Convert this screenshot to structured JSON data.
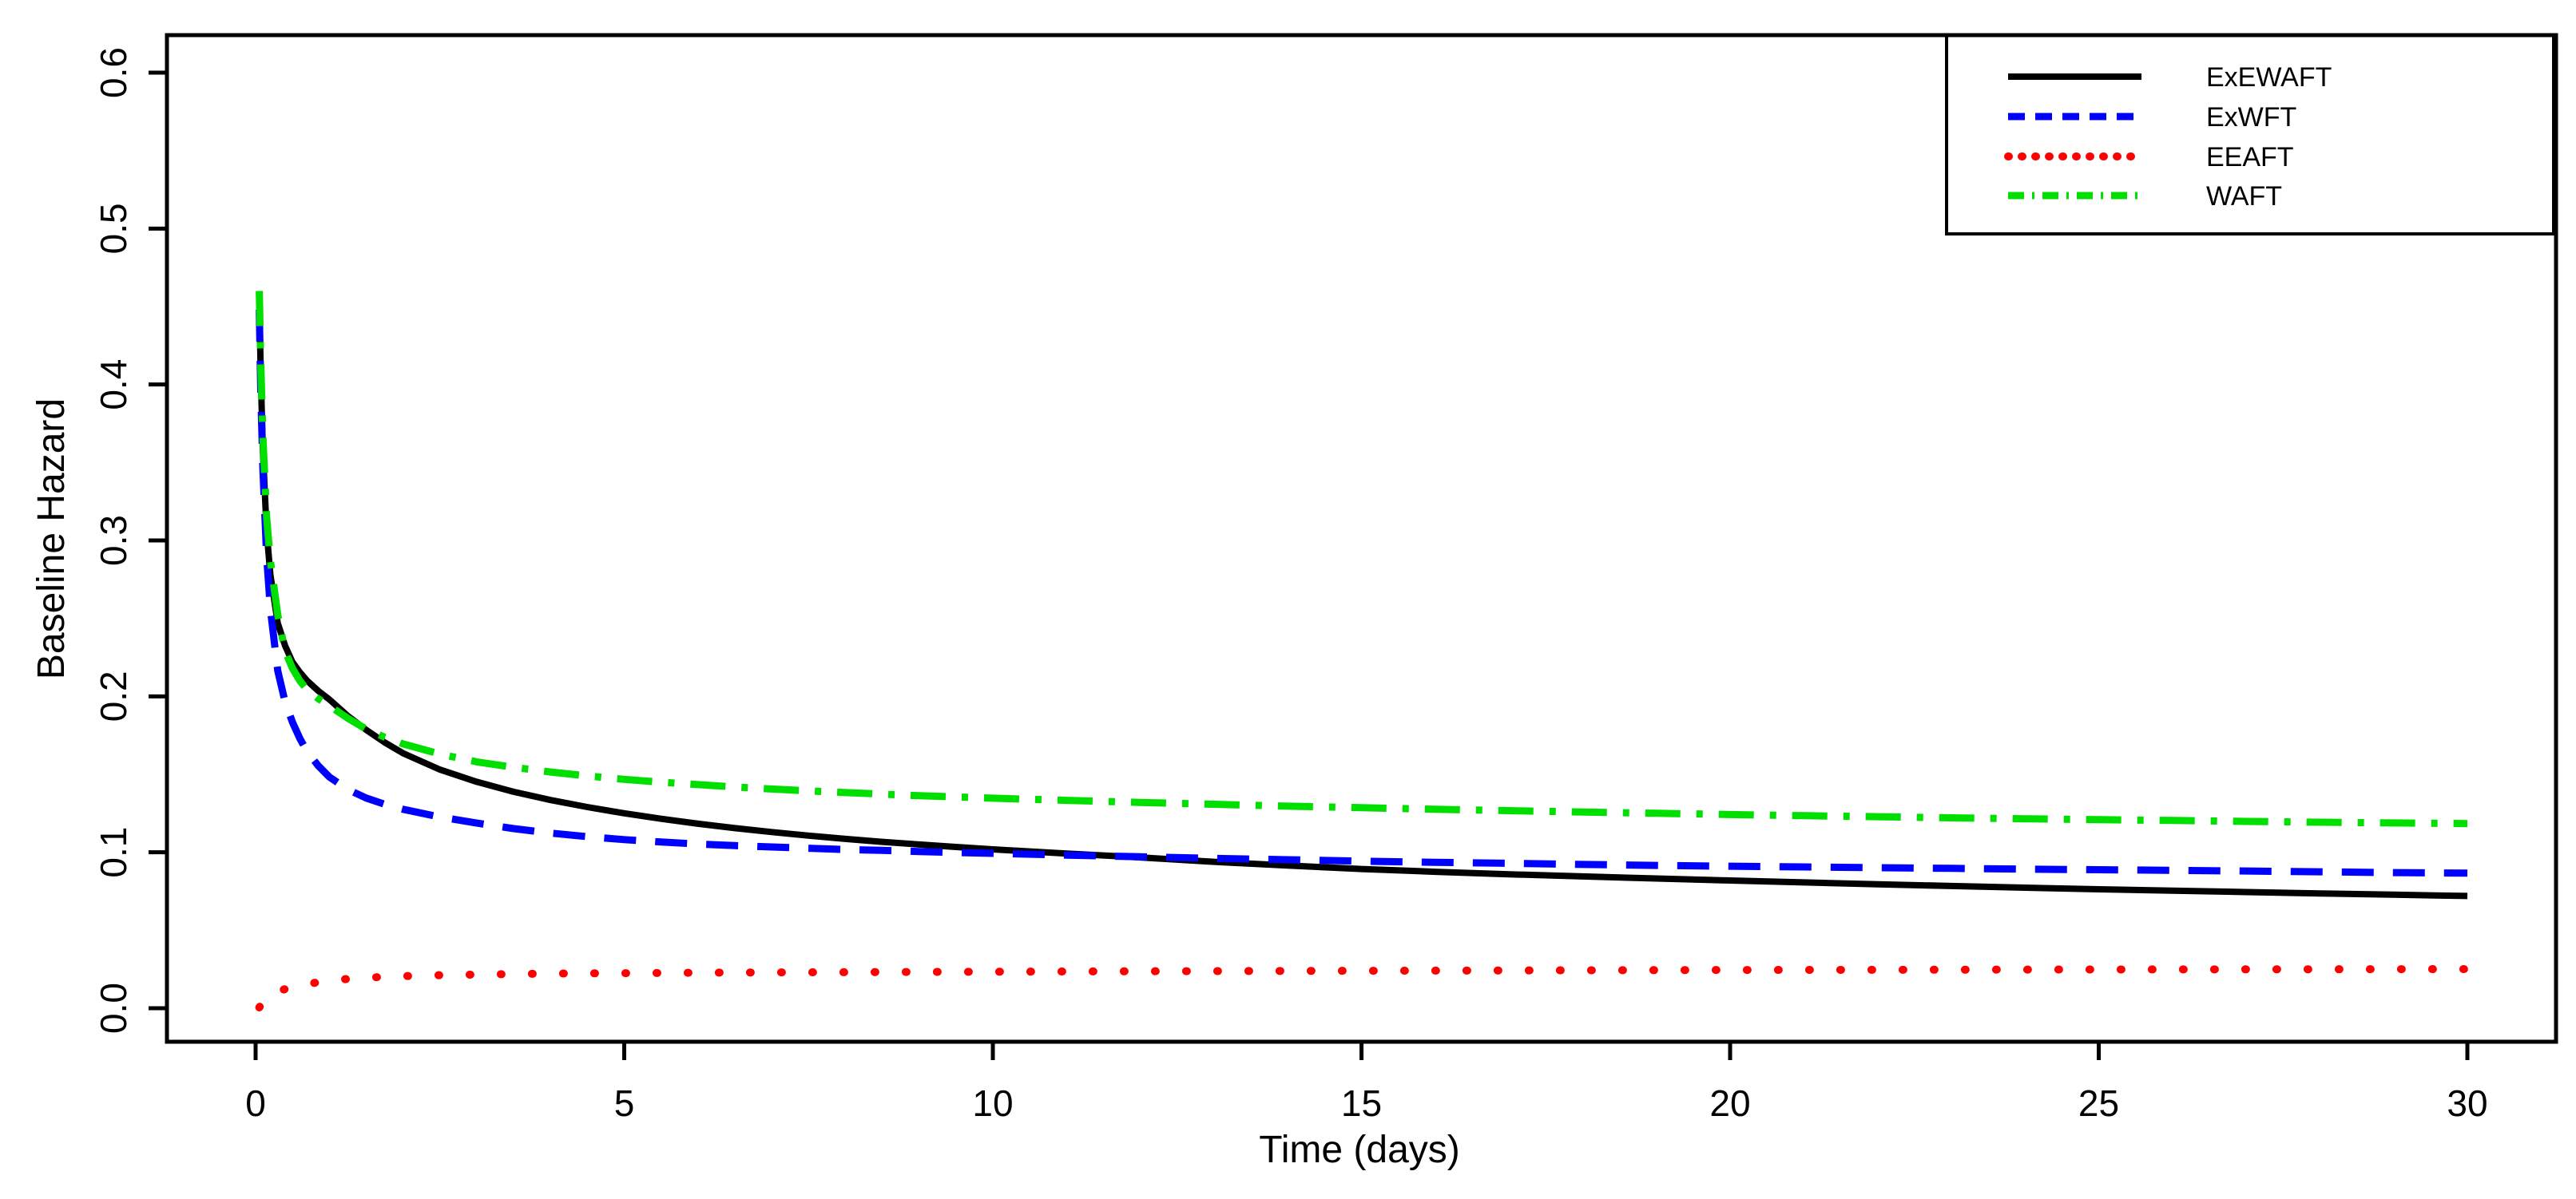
{
  "figure": {
    "background_color": "#FFFFFF",
    "border_color": "#000000"
  },
  "chart_data": {
    "type": "line",
    "title": "",
    "xlabel": "Time (days)",
    "ylabel": "Baseline Hazard",
    "xlim": [
      0,
      30
    ],
    "ylim": [
      0,
      0.6
    ],
    "grid": false,
    "x_ticks": {
      "values": [
        0,
        5,
        10,
        15,
        20,
        25,
        30
      ],
      "labels": [
        "0",
        "5",
        "10",
        "15",
        "20",
        "25",
        "30"
      ]
    },
    "y_ticks": {
      "values": [
        0.0,
        0.1,
        0.2,
        0.3,
        0.4,
        0.5,
        0.6
      ],
      "labels": [
        "0.0",
        "0.1",
        "0.2",
        "0.3",
        "0.4",
        "0.5",
        "0.6"
      ]
    },
    "legend": {
      "position": "topright",
      "frame": true
    },
    "series": [
      {
        "name": "ExEWAFT",
        "color": "#000000",
        "line_style": "solid",
        "line_width": 8,
        "points": [
          [
            0.05,
            0.455
          ],
          [
            0.07,
            0.405
          ],
          [
            0.1,
            0.357
          ],
          [
            0.15,
            0.306
          ],
          [
            0.2,
            0.278
          ],
          [
            0.3,
            0.247
          ],
          [
            0.4,
            0.2325
          ],
          [
            0.5,
            0.222
          ],
          [
            0.6,
            0.2155
          ],
          [
            0.7,
            0.21
          ],
          [
            0.85,
            0.2035
          ],
          [
            1,
            0.198
          ],
          [
            1.25,
            0.1875
          ],
          [
            1.5,
            0.1785
          ],
          [
            1.75,
            0.1705
          ],
          [
            2,
            0.1635
          ],
          [
            2.5,
            0.153
          ],
          [
            3,
            0.1452
          ],
          [
            3.5,
            0.1388
          ],
          [
            4,
            0.1335
          ],
          [
            4.5,
            0.129
          ],
          [
            5,
            0.125
          ],
          [
            5.5,
            0.1215
          ],
          [
            6,
            0.1183
          ],
          [
            6.5,
            0.1155
          ],
          [
            7,
            0.113
          ],
          [
            7.5,
            0.1107
          ],
          [
            8,
            0.1086
          ],
          [
            8.5,
            0.1067
          ],
          [
            9,
            0.105
          ],
          [
            9.5,
            0.1034
          ],
          [
            10,
            0.1019
          ],
          [
            11,
            0.0992
          ],
          [
            12,
            0.0967
          ],
          [
            13,
            0.0939
          ],
          [
            14,
            0.0915
          ],
          [
            15,
            0.0893
          ],
          [
            16,
            0.0875
          ],
          [
            17,
            0.0859
          ],
          [
            18,
            0.0845
          ],
          [
            19,
            0.0832
          ],
          [
            20,
            0.0819
          ],
          [
            21,
            0.0807
          ],
          [
            22,
            0.0795
          ],
          [
            23,
            0.0784
          ],
          [
            24,
            0.0773
          ],
          [
            25,
            0.0763
          ],
          [
            26,
            0.0754
          ],
          [
            27,
            0.0745
          ],
          [
            28,
            0.0736
          ],
          [
            29,
            0.0728
          ],
          [
            30,
            0.072
          ]
        ]
      },
      {
        "name": "ExWFT",
        "color": "#0000FF",
        "line_style": "dashed",
        "line_width": 9,
        "points": [
          [
            0.05,
            0.448
          ],
          [
            0.07,
            0.395
          ],
          [
            0.1,
            0.345
          ],
          [
            0.15,
            0.29
          ],
          [
            0.2,
            0.256
          ],
          [
            0.3,
            0.2165
          ],
          [
            0.4,
            0.1965
          ],
          [
            0.5,
            0.1835
          ],
          [
            0.6,
            0.173
          ],
          [
            0.7,
            0.1645
          ],
          [
            0.85,
            0.1555
          ],
          [
            1,
            0.1483
          ],
          [
            1.25,
            0.1403
          ],
          [
            1.5,
            0.1348
          ],
          [
            1.75,
            0.1308
          ],
          [
            2,
            0.1276
          ],
          [
            2.5,
            0.1226
          ],
          [
            3,
            0.1187
          ],
          [
            3.5,
            0.1152
          ],
          [
            4,
            0.1123
          ],
          [
            4.5,
            0.11
          ],
          [
            5,
            0.1081
          ],
          [
            5.5,
            0.1066
          ],
          [
            6,
            0.1053
          ],
          [
            6.5,
            0.1043
          ],
          [
            7,
            0.1034
          ],
          [
            7.5,
            0.1026
          ],
          [
            8,
            0.1018
          ],
          [
            8.5,
            0.1012
          ],
          [
            9,
            0.1005
          ],
          [
            9.5,
            0.0999
          ],
          [
            10,
            0.0993
          ],
          [
            11,
            0.0982
          ],
          [
            12,
            0.0971
          ],
          [
            13,
            0.0961
          ],
          [
            14,
            0.0952
          ],
          [
            15,
            0.0943
          ],
          [
            16,
            0.0936
          ],
          [
            17,
            0.0929
          ],
          [
            18,
            0.0922
          ],
          [
            19,
            0.0916
          ],
          [
            20,
            0.0911
          ],
          [
            21,
            0.0906
          ],
          [
            22,
            0.0901
          ],
          [
            23,
            0.0897
          ],
          [
            24,
            0.0892
          ],
          [
            25,
            0.0888
          ],
          [
            26,
            0.0884
          ],
          [
            27,
            0.088
          ],
          [
            28,
            0.0875
          ],
          [
            29,
            0.087
          ],
          [
            30,
            0.0866
          ]
        ]
      },
      {
        "name": "EEAFT",
        "color": "#FF0000",
        "line_style": "dotted",
        "line_width": 10,
        "points": [
          [
            0.05,
            0.0005
          ],
          [
            0.1,
            0.004
          ],
          [
            0.2,
            0.0082
          ],
          [
            0.3,
            0.0107
          ],
          [
            0.4,
            0.0123
          ],
          [
            0.5,
            0.0136
          ],
          [
            0.65,
            0.0151
          ],
          [
            0.8,
            0.0163
          ],
          [
            1,
            0.0176
          ],
          [
            1.25,
            0.0188
          ],
          [
            1.5,
            0.0196
          ],
          [
            2,
            0.0206
          ],
          [
            2.5,
            0.0212
          ],
          [
            3,
            0.0216
          ],
          [
            4,
            0.0222
          ],
          [
            5,
            0.0225
          ],
          [
            6,
            0.0228
          ],
          [
            7,
            0.023
          ],
          [
            8,
            0.0231
          ],
          [
            9,
            0.0233
          ],
          [
            10,
            0.0234
          ],
          [
            12,
            0.0237
          ],
          [
            14,
            0.0239
          ],
          [
            16,
            0.0241
          ],
          [
            18,
            0.0243
          ],
          [
            20,
            0.0245
          ],
          [
            22,
            0.0246
          ],
          [
            24,
            0.0248
          ],
          [
            26,
            0.0249
          ],
          [
            28,
            0.025
          ],
          [
            30,
            0.0251
          ]
        ]
      },
      {
        "name": "WAFT",
        "color": "#00DF00",
        "line_style": "dashdot",
        "line_width": 9,
        "points": [
          [
            0.05,
            0.46
          ],
          [
            0.07,
            0.413
          ],
          [
            0.1,
            0.366
          ],
          [
            0.15,
            0.315
          ],
          [
            0.2,
            0.287
          ],
          [
            0.3,
            0.2525
          ],
          [
            0.4,
            0.229
          ],
          [
            0.5,
            0.218
          ],
          [
            0.6,
            0.21
          ],
          [
            0.7,
            0.204
          ],
          [
            0.85,
            0.1985
          ],
          [
            1,
            0.194
          ],
          [
            1.25,
            0.186
          ],
          [
            1.5,
            0.179
          ],
          [
            1.75,
            0.1738
          ],
          [
            2,
            0.1695
          ],
          [
            2.5,
            0.163
          ],
          [
            3,
            0.158
          ],
          [
            3.5,
            0.1545
          ],
          [
            4,
            0.1515
          ],
          [
            4.5,
            0.149
          ],
          [
            5,
            0.1468
          ],
          [
            5.5,
            0.145
          ],
          [
            6,
            0.1434
          ],
          [
            6.5,
            0.1419
          ],
          [
            7,
            0.1406
          ],
          [
            7.5,
            0.1394
          ],
          [
            8,
            0.1383
          ],
          [
            8.5,
            0.1373
          ],
          [
            9,
            0.1363
          ],
          [
            9.5,
            0.1355
          ],
          [
            10,
            0.1347
          ],
          [
            11,
            0.1333
          ],
          [
            12,
            0.132
          ],
          [
            13,
            0.1308
          ],
          [
            14,
            0.1296
          ],
          [
            15,
            0.1286
          ],
          [
            16,
            0.1276
          ],
          [
            17,
            0.1267
          ],
          [
            18,
            0.1258
          ],
          [
            19,
            0.125
          ],
          [
            20,
            0.1242
          ],
          [
            21,
            0.1235
          ],
          [
            22,
            0.1228
          ],
          [
            23,
            0.1221
          ],
          [
            24,
            0.1215
          ],
          [
            25,
            0.1209
          ],
          [
            26,
            0.1204
          ],
          [
            27,
            0.1198
          ],
          [
            28,
            0.1193
          ],
          [
            29,
            0.1188
          ],
          [
            30,
            0.1184
          ]
        ]
      }
    ]
  }
}
